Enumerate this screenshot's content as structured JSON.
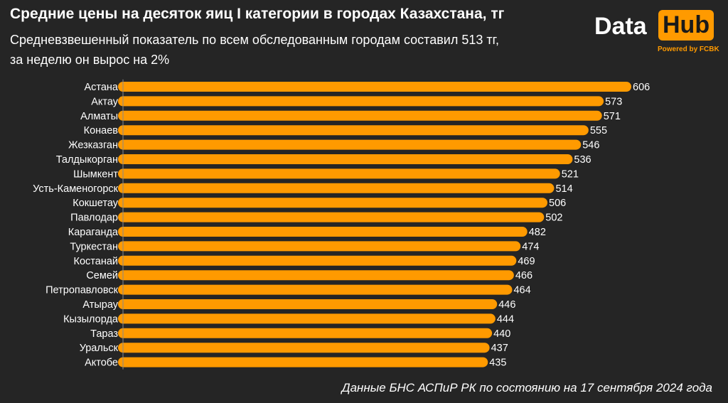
{
  "header": {
    "title": "Средние цены на десяток яиц I категории в городах Казахстана, тг",
    "subtitle_line1": "Средневзвешенный показатель по всем обследованным городам составил 513 тг,",
    "subtitle_line2": "за неделю он вырос на 2%"
  },
  "logo": {
    "word1": "Data",
    "word2": "Hub",
    "powered": "Powered by FCBK"
  },
  "footer": {
    "source": "Данные БНС АСПиР РК по состоянию на 17 сентября 2024 года"
  },
  "colors": {
    "background": "#252525",
    "bar": "#ff9a00",
    "text": "#ffffff"
  },
  "chart_data": {
    "type": "bar",
    "orientation": "horizontal",
    "title": "Средние цены на десяток яиц I категории в городах Казахстана, тг",
    "xlabel": "",
    "ylabel": "",
    "xlim": [
      0,
      606
    ],
    "grid": false,
    "categories": [
      "Астана",
      "Актау",
      "Алматы",
      "Конаев",
      "Жезказган",
      "Талдыкорган",
      "Шымкент",
      "Усть-Каменогорск",
      "Кокшетау",
      "Павлодар",
      "Караганда",
      "Туркестан",
      "Костанай",
      "Семей",
      "Петропавловск",
      "Атырау",
      "Кызылорда",
      "Тараз",
      "Уральск",
      "Актобе"
    ],
    "values": [
      606,
      573,
      571,
      555,
      546,
      536,
      521,
      514,
      506,
      502,
      482,
      474,
      469,
      466,
      464,
      446,
      444,
      440,
      437,
      435
    ]
  }
}
